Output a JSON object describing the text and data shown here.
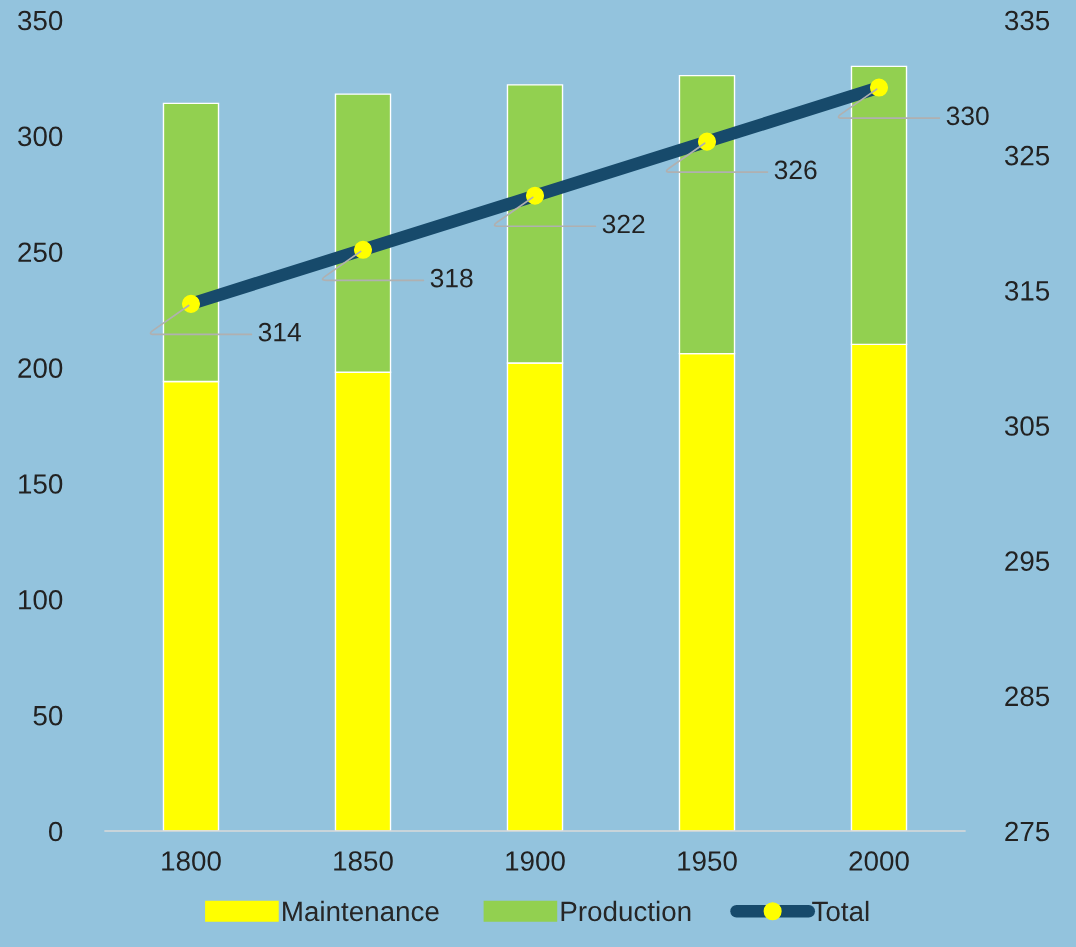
{
  "chart_data": {
    "type": "bar",
    "stacked": true,
    "categories": [
      "1800",
      "1850",
      "1900",
      "1950",
      "2000"
    ],
    "series": [
      {
        "name": "Maintenance",
        "color": "#ffff00",
        "values": [
          194,
          198,
          202,
          206,
          210
        ]
      },
      {
        "name": "Production",
        "color": "#92d050",
        "values": [
          120,
          120,
          120,
          120,
          120
        ]
      },
      {
        "name": "Total",
        "type": "line",
        "axis": "y2",
        "color": "#174a6b",
        "marker": "circle",
        "values": [
          314,
          318,
          322,
          326,
          330
        ],
        "value_labels": [
          "314",
          "318",
          "322",
          "326",
          "330"
        ]
      }
    ],
    "ylim": [
      0,
      350
    ],
    "yticks": [
      0,
      50,
      100,
      150,
      200,
      250,
      300,
      350
    ],
    "y2lim": [
      275,
      335
    ],
    "y2ticks": [
      275,
      285,
      295,
      305,
      315,
      325,
      335
    ],
    "grid": false,
    "legend": "bottom"
  }
}
